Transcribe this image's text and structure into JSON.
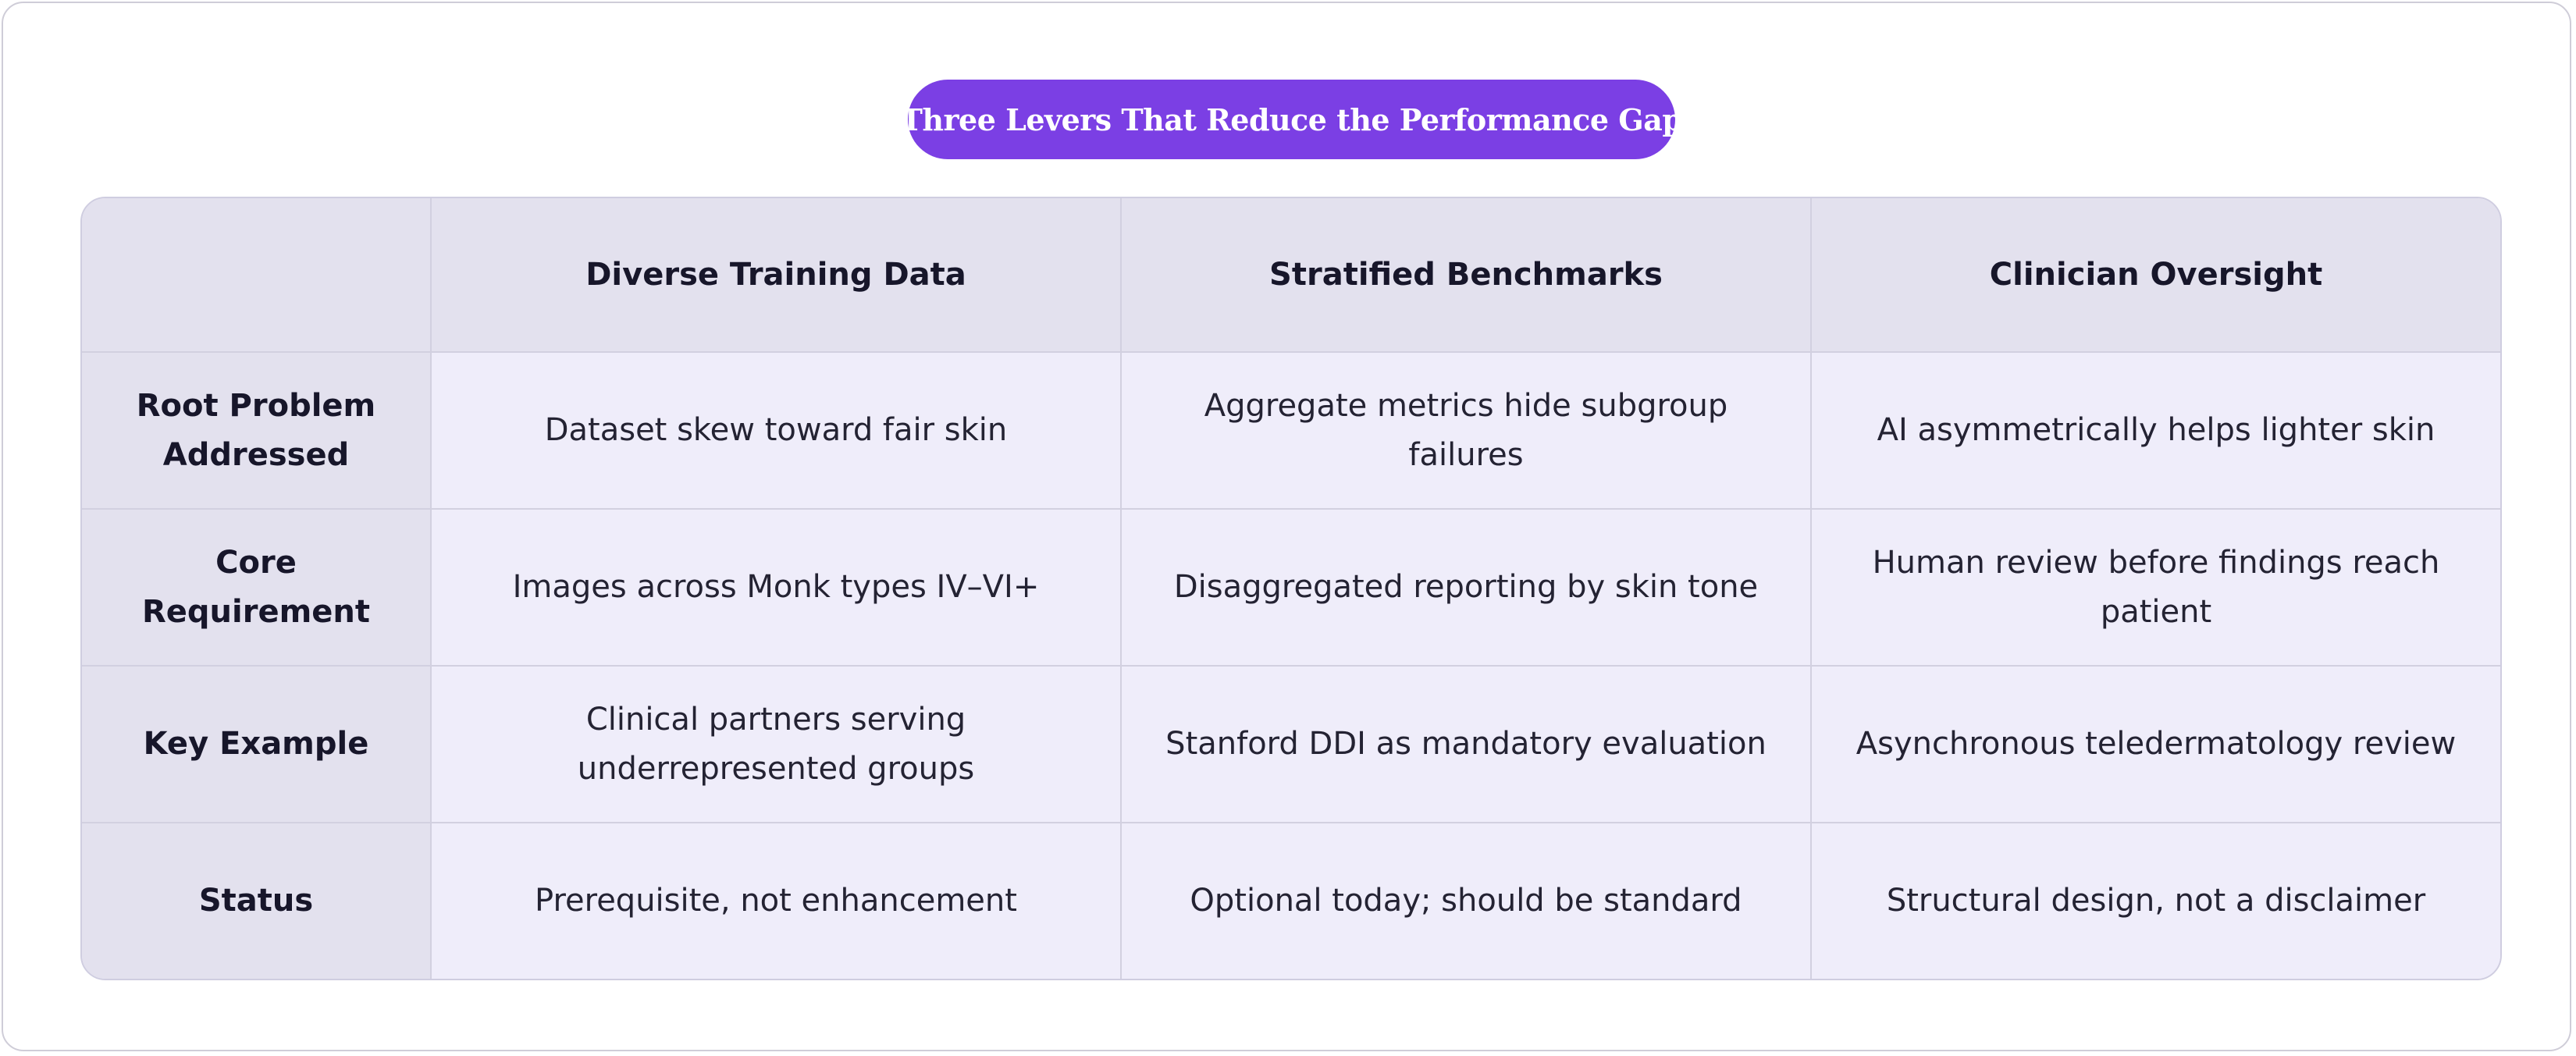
{
  "title": "Three Levers That Reduce the Performance Gap",
  "table": {
    "corner": "",
    "columns": [
      "Diverse Training Data",
      "Stratified Benchmarks",
      "Clinician Oversight"
    ],
    "rows": [
      {
        "label": "Root Problem Addressed",
        "cells": [
          "Dataset skew toward fair skin",
          "Aggregate metrics hide subgroup failures",
          "AI asymmetrically helps lighter skin"
        ]
      },
      {
        "label": "Core Requirement",
        "cells": [
          "Images across Monk types IV–VI+",
          "Disaggregated reporting by skin tone",
          "Human review before findings reach patient"
        ]
      },
      {
        "label": "Key Example",
        "cells": [
          "Clinical partners serving underrepresented groups",
          "Stanford DDI as mandatory evaluation",
          "Asynchronous teledermatology review"
        ]
      },
      {
        "label": "Status",
        "cells": [
          "Prerequisite, not enhancement",
          "Optional today; should be standard",
          "Structural design, not a disclaimer"
        ]
      }
    ]
  },
  "colors": {
    "accent": "#7b3fe4",
    "header_bg": "#e3e1ee",
    "cell_bg": "#efedfa",
    "border": "#d2d0e0"
  }
}
